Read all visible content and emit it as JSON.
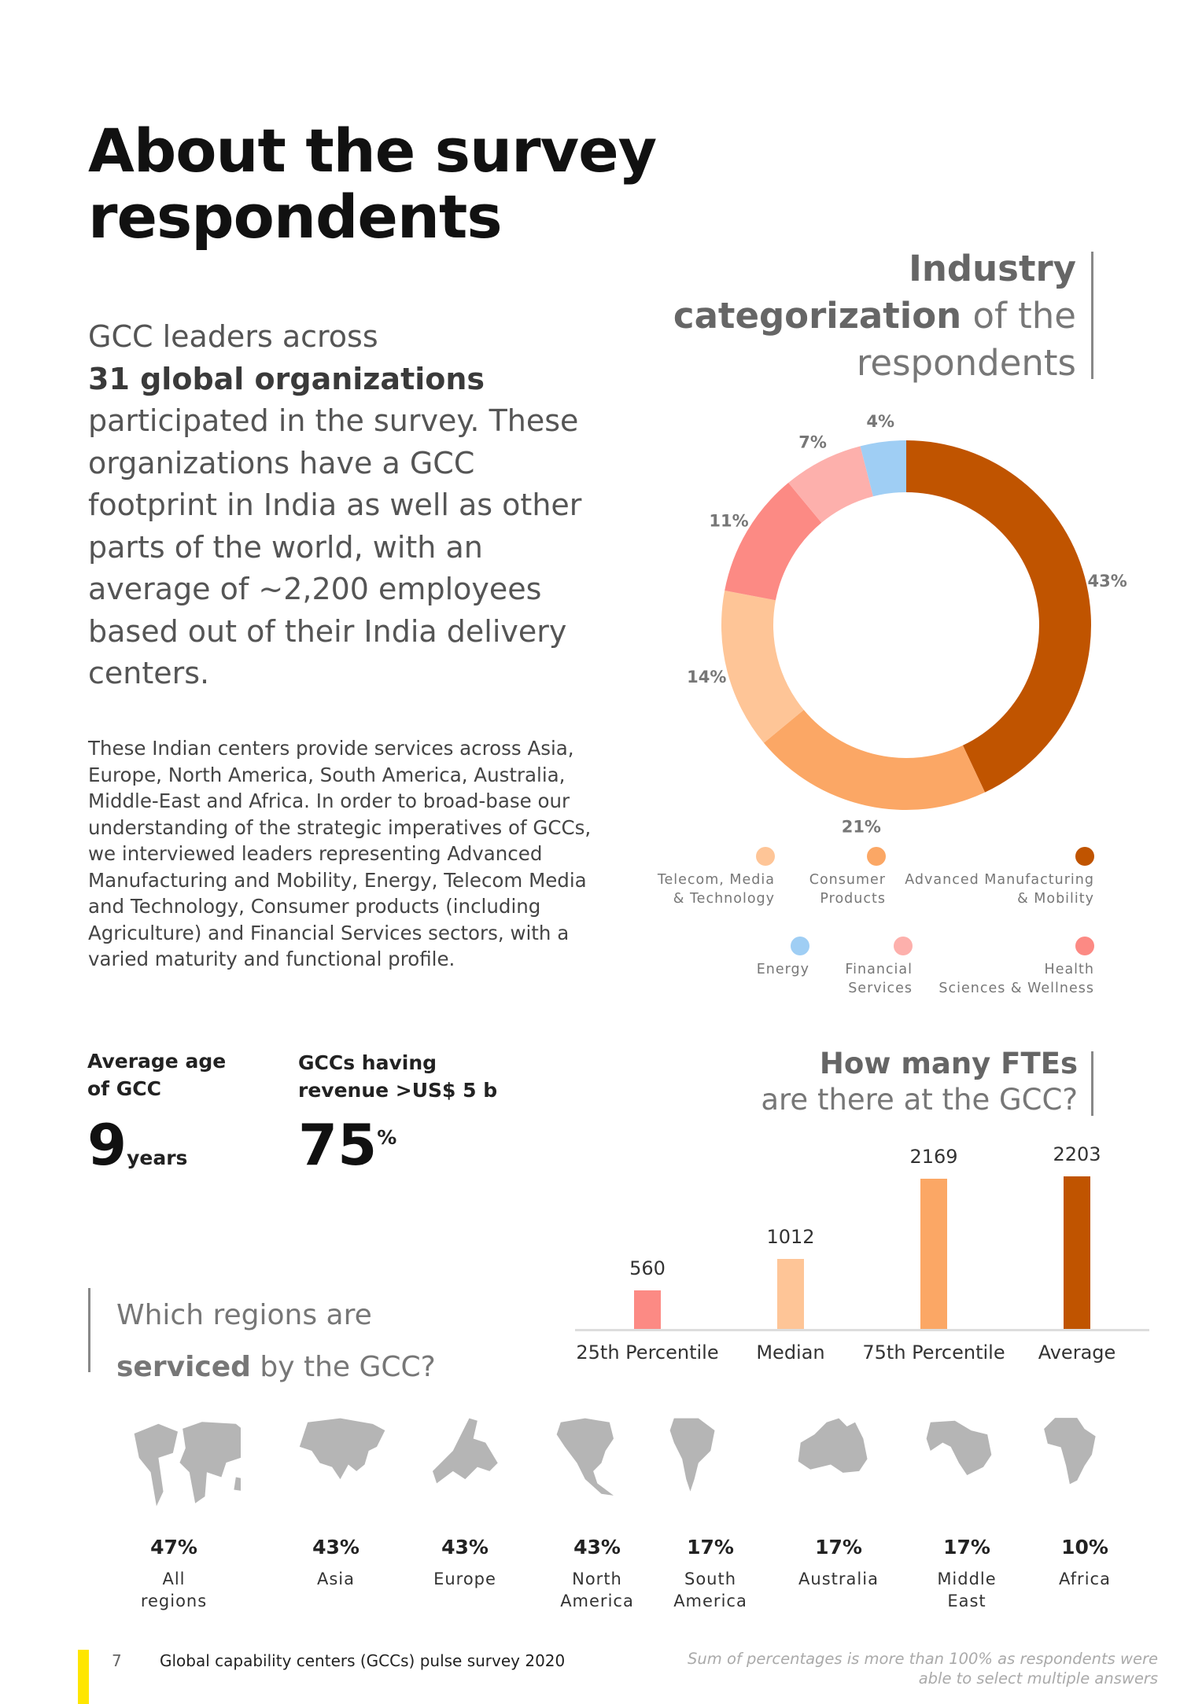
{
  "title": [
    "About the survey",
    "respondents"
  ],
  "intro": {
    "line1": "GCC leaders across",
    "bold": "31 global organizations",
    "rest": "participated in the survey. These organizations have a GCC footprint in India as well as other parts of the world, with an average of ~2,200 employees based out of their India delivery centers."
  },
  "body": "These Indian centers provide services across Asia, Europe, North America, South America, Australia, Middle-East and Africa. In order to broad-base our understanding of the strategic imperatives of GCCs, we interviewed leaders representing Advanced Manufacturing and Mobility, Energy, Telecom Media and Technology, Consumer products (including Agriculture) and Financial Services sectors, with a varied maturity and functional profile.",
  "industry_heading": {
    "l1": "Industry",
    "l2_bold": "categorization",
    "l2_rest": " of the",
    "l3": "respondents"
  },
  "stats": {
    "age_label": [
      "Average age",
      "of GCC"
    ],
    "age_value": "9",
    "age_unit": "years",
    "rev_label": [
      "GCCs having",
      "revenue >US$ 5 b"
    ],
    "rev_value": "75",
    "rev_unit": "%"
  },
  "fte_heading": {
    "l1": "How many FTEs",
    "l2": "are there at the GCC?"
  },
  "regions_heading": {
    "l1": "Which regions are",
    "bold": "serviced",
    "rest": " by the GCC?"
  },
  "regions": [
    {
      "pct": "47%",
      "name": [
        "All",
        "regions"
      ],
      "icon": "world-map-icon"
    },
    {
      "pct": "43%",
      "name": [
        "Asia"
      ],
      "icon": "asia-map-icon"
    },
    {
      "pct": "43%",
      "name": [
        "Europe"
      ],
      "icon": "europe-map-icon"
    },
    {
      "pct": "43%",
      "name": [
        "North",
        "America"
      ],
      "icon": "north-america-map-icon"
    },
    {
      "pct": "17%",
      "name": [
        "South",
        "America"
      ],
      "icon": "south-america-map-icon"
    },
    {
      "pct": "17%",
      "name": [
        "Australia"
      ],
      "icon": "australia-map-icon"
    },
    {
      "pct": "17%",
      "name": [
        "Middle",
        "East"
      ],
      "icon": "middle-east-map-icon"
    },
    {
      "pct": "10%",
      "name": [
        "Africa"
      ],
      "icon": "africa-map-icon"
    }
  ],
  "footer": {
    "page": "7",
    "title": "Global capability centers (GCCs) pulse survey 2020",
    "note": [
      "Sum of percentages is more than 100% as respondents were",
      "able to select multiple answers"
    ]
  },
  "chart_data": [
    {
      "type": "pie",
      "variant": "donut",
      "title": "Industry categorization of the respondents",
      "slices": [
        {
          "label": "Advanced Manufacturing & Mobility",
          "value": 43,
          "display": "43%",
          "color": "#c05400"
        },
        {
          "label": "Consumer Products",
          "value": 21,
          "display": "21%",
          "color": "#fba765"
        },
        {
          "label": "Telecom, Media & Technology",
          "value": 14,
          "display": "14%",
          "color": "#fec597"
        },
        {
          "label": "Health Sciences & Wellness",
          "value": 11,
          "display": "11%",
          "color": "#fc8a84"
        },
        {
          "label": "Financial Services",
          "value": 7,
          "display": "7%",
          "color": "#fdb0ac"
        },
        {
          "label": "Energy",
          "value": 4,
          "display": "4%",
          "color": "#9fcef4"
        }
      ],
      "legend": [
        {
          "label": [
            "Telecom, Media",
            "& Technology"
          ],
          "color": "#fec597"
        },
        {
          "label": [
            "Consumer",
            "Products"
          ],
          "color": "#fba765"
        },
        {
          "label": [
            "Advanced Manufacturing",
            "& Mobility"
          ],
          "color": "#c05400"
        },
        {
          "label": [
            "Energy"
          ],
          "color": "#9fcef4"
        },
        {
          "label": [
            "Financial",
            "Services"
          ],
          "color": "#fdb0ac"
        },
        {
          "label": [
            "Health",
            "Sciences & Wellness"
          ],
          "color": "#fc8a84"
        }
      ],
      "legend_position": "bottom"
    },
    {
      "type": "bar",
      "title": "How many FTEs are there at the GCC?",
      "categories": [
        "25th Percentile",
        "Median",
        "75th Percentile",
        "Average"
      ],
      "values": [
        560,
        1012,
        2169,
        2203
      ],
      "colors": [
        "#fc8a84",
        "#fec597",
        "#fba765",
        "#c05400"
      ],
      "ylim": [
        0,
        2203
      ],
      "grid": false
    }
  ]
}
